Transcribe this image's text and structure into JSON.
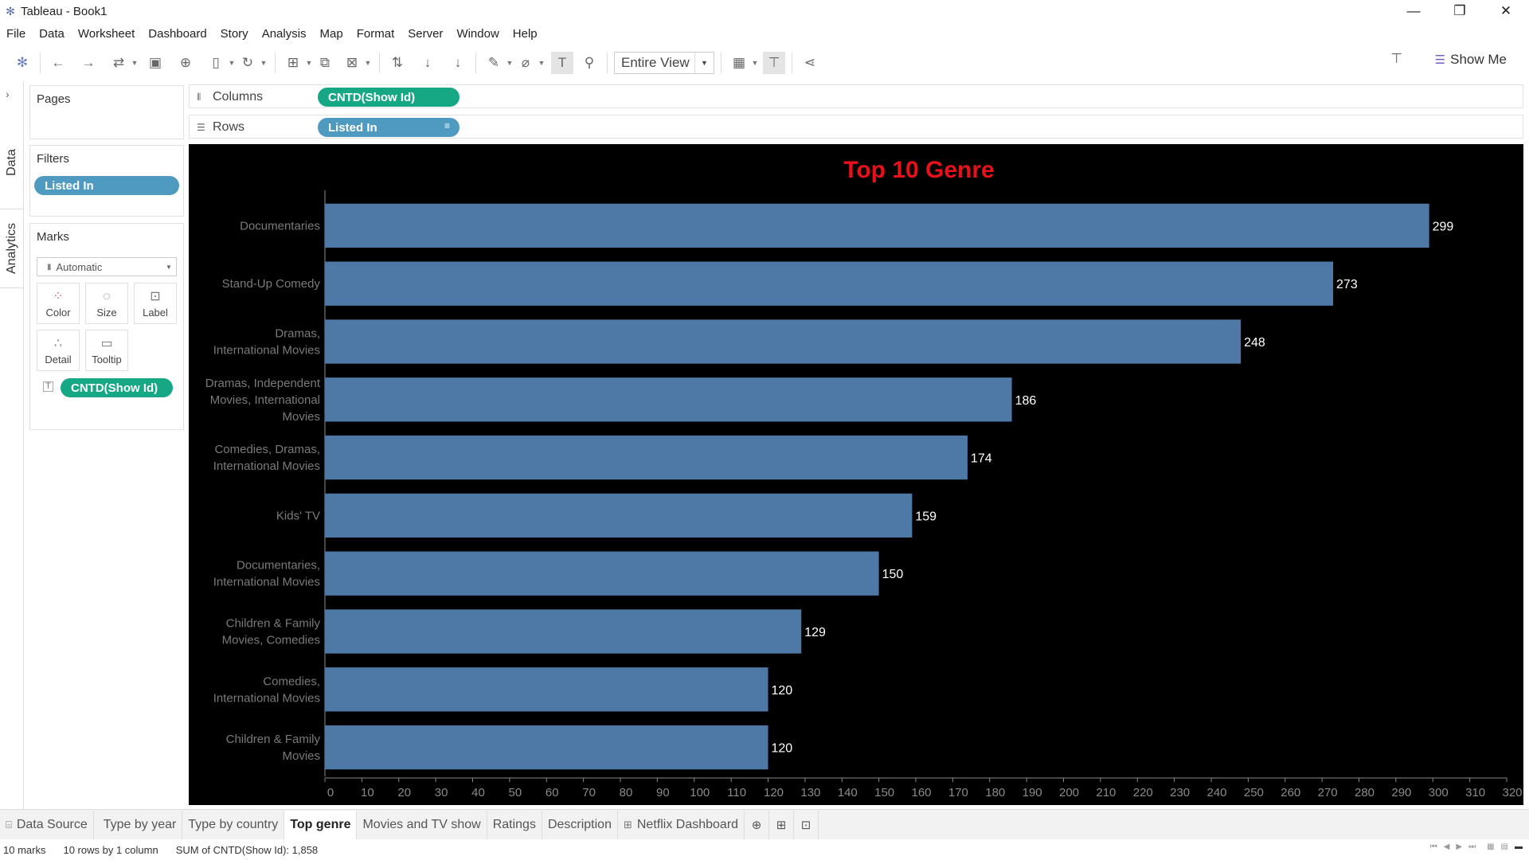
{
  "window": {
    "title": "Tableau - Book1"
  },
  "menu": [
    "File",
    "Data",
    "Worksheet",
    "Dashboard",
    "Story",
    "Analysis",
    "Map",
    "Format",
    "Server",
    "Window",
    "Help"
  ],
  "toolbar": {
    "view_mode": "Entire View",
    "show_me": "Show Me"
  },
  "side_tabs": {
    "data": "Data",
    "analytics": "Analytics"
  },
  "pages": {
    "title": "Pages"
  },
  "filters": {
    "title": "Filters",
    "pill": "Listed In"
  },
  "marks": {
    "title": "Marks",
    "type": "Automatic",
    "buttons": {
      "color": "Color",
      "size": "Size",
      "label": "Label",
      "detail": "Detail",
      "tooltip": "Tooltip"
    },
    "pill": "CNTD(Show Id)"
  },
  "shelves": {
    "columns_label": "Columns",
    "columns_pill": "CNTD(Show Id)",
    "rows_label": "Rows",
    "rows_pill": "Listed In"
  },
  "chart_data": {
    "type": "bar",
    "orientation": "horizontal",
    "title": "Top 10 Genre",
    "title_color": "#e8101a",
    "bar_color": "#4e79a7",
    "background": "#000000",
    "categories": [
      [
        "Documentaries"
      ],
      [
        "Stand-Up Comedy"
      ],
      [
        "Dramas,",
        "International Movies"
      ],
      [
        "Dramas, Independent",
        "Movies, International",
        "Movies"
      ],
      [
        "Comedies, Dramas,",
        "International Movies"
      ],
      [
        "Kids' TV"
      ],
      [
        "Documentaries,",
        "International Movies"
      ],
      [
        "Children & Family",
        "Movies, Comedies"
      ],
      [
        "Comedies,",
        "International Movies"
      ],
      [
        "Children & Family",
        "Movies"
      ]
    ],
    "values": [
      299,
      273,
      248,
      186,
      174,
      159,
      150,
      129,
      120,
      120
    ],
    "xlim": [
      0,
      320
    ],
    "xticks": [
      0,
      10,
      20,
      30,
      40,
      50,
      60,
      70,
      80,
      90,
      100,
      110,
      120,
      130,
      140,
      150,
      160,
      170,
      180,
      190,
      200,
      210,
      220,
      230,
      240,
      250,
      260,
      270,
      280,
      290,
      300,
      310,
      320
    ],
    "grid": false
  },
  "sheet_tabs": {
    "data_source": "Data Source",
    "tabs": [
      "Type by year",
      "Type by country",
      "Top genre",
      "Movies and TV show",
      "Ratings",
      "Description"
    ],
    "active": "Top genre",
    "dashboard": "Netflix Dashboard"
  },
  "status": {
    "marks": "10 marks",
    "rows_cols": "10 rows by 1 column",
    "sum": "SUM of CNTD(Show Id): 1,858"
  }
}
